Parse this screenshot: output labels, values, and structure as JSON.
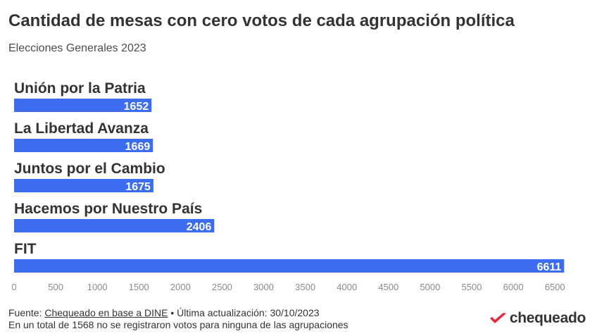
{
  "header": {
    "title": "Cantidad de mesas con cero votos de cada agrupación política",
    "subtitle": "Elecciones Generales 2023"
  },
  "chart_data": {
    "type": "bar",
    "orientation": "horizontal",
    "categories": [
      "Unión por la Patria",
      "La Libertad Avanza",
      "Juntos por el Cambio",
      "Hacemos por Nuestro País",
      "FIT"
    ],
    "values": [
      1652,
      1669,
      1675,
      2406,
      6611
    ],
    "xlim": [
      0,
      6600
    ],
    "xticks": [
      0,
      500,
      1000,
      1500,
      2000,
      2500,
      3000,
      3500,
      4000,
      4500,
      5000,
      5500,
      6000,
      6500
    ],
    "bar_color": "#3c6df0",
    "grid": false,
    "legend": "none",
    "data_labels": true
  },
  "footer": {
    "source_prefix": "Fuente: ",
    "source_link": "Chequeado en base a DINE",
    "updated": " • Última actualización: 30/10/2023",
    "note": "En un total de 1568 no se registraron votos para ninguna de las agrupaciones"
  },
  "logo": {
    "text": "chequeado",
    "color": "#e2293e"
  }
}
